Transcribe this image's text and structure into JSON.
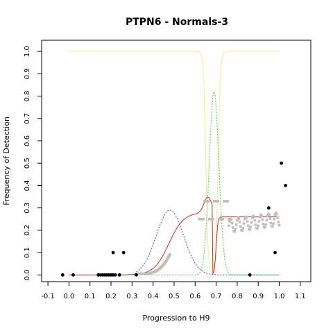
{
  "chart_data": {
    "type": "scatter",
    "title": "PTPN6 - Normals-3",
    "xlabel": "Progression to H9",
    "ylabel": "Frequency of Detection",
    "xlim": [
      -0.13,
      1.15
    ],
    "ylim": [
      -0.03,
      1.05
    ],
    "xticks": [
      -0.1,
      0,
      0.1,
      0.2,
      0.3,
      0.4,
      0.5,
      0.6,
      0.7,
      0.8,
      0.9,
      1.0,
      1.1
    ],
    "xtick_labels": [
      "-0.1",
      "0.0",
      "0.1",
      "0.2",
      "0.3",
      "0.4",
      "0.5",
      "0.6",
      "0.7",
      "0.8",
      "0.9",
      "1.0",
      "1.1"
    ],
    "yticks": [
      0,
      0.1,
      0.2,
      0.3,
      0.4,
      0.5,
      0.6,
      0.7,
      0.8,
      0.9,
      1.0
    ],
    "ytick_labels": [
      "0.0",
      "0.1",
      "0.2",
      "0.3",
      "0.4",
      "0.5",
      "0.6",
      "0.7",
      "0.8",
      "0.9",
      "1.0"
    ],
    "grid": false,
    "colors": {
      "points": "#000000",
      "smoothed": "#bebebe",
      "fit": "#e8231d",
      "blue_curve": "#4040e0",
      "green_curve": "#33dd33",
      "yellow_curve": "#f0f080"
    },
    "points": [
      [
        -0.03,
        0.0
      ],
      [
        0.02,
        0.0
      ],
      [
        0.14,
        0.0
      ],
      [
        0.15,
        0.0
      ],
      [
        0.16,
        0.0
      ],
      [
        0.17,
        0.0
      ],
      [
        0.18,
        0.0
      ],
      [
        0.19,
        0.0
      ],
      [
        0.2,
        0.0
      ],
      [
        0.21,
        0.0
      ],
      [
        0.22,
        0.0
      ],
      [
        0.24,
        0.0
      ],
      [
        0.21,
        0.1
      ],
      [
        0.26,
        0.1
      ],
      [
        0.32,
        0.0
      ],
      [
        0.86,
        0.0
      ],
      [
        0.95,
        0.3
      ],
      [
        0.98,
        0.1
      ],
      [
        1.01,
        0.5
      ],
      [
        1.03,
        0.4
      ]
    ]
  }
}
